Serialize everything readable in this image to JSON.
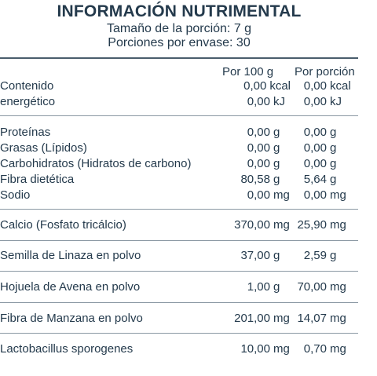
{
  "title": "INFORMACIÓN NUTRIMENTAL",
  "serving_size": "Tamaño de la porción: 7 g",
  "servings_per_container": "Porciones por envase: 30",
  "columns": {
    "per_100g": "Por 100 g",
    "per_serving": "Por porción"
  },
  "energy": {
    "label_line1": "Contenido",
    "label_line2": "energético",
    "kcal": {
      "v1": "0,00",
      "v2": "0,00",
      "unit": "kcal"
    },
    "kj": {
      "v1": "0,00",
      "v2": "0,00",
      "unit": "kJ"
    }
  },
  "nutrients": [
    {
      "label": "Proteínas",
      "v1": "0,00",
      "v2": "0,00",
      "unit": "g"
    },
    {
      "label": "Grasas (Lípidos)",
      "v1": "0,00",
      "v2": "0,00",
      "unit": "g"
    },
    {
      "label": "Carbohidratos (Hidratos de carbono)",
      "v1": "0,00",
      "v2": "0,00",
      "unit": "g"
    },
    {
      "label": "Fibra dietética",
      "v1": "80,58",
      "v2": "5,64",
      "unit": "g"
    },
    {
      "label": "Sodio",
      "v1": "0,00",
      "v2": "0,00",
      "unit": "mg"
    }
  ],
  "ingredients": [
    {
      "label": "Calcio (Fosfato tricálcio)",
      "v1": "370,00",
      "u1": "mg",
      "v2": "25,90",
      "u2": "mg"
    },
    {
      "label": "Semilla de Linaza en polvo",
      "v1": "37,00",
      "u1": "g",
      "v2": "2,59",
      "u2": "g"
    },
    {
      "label": "Hojuela de Avena en polvo",
      "v1": "1,00",
      "u1": "g",
      "v2": "70,00",
      "u2": "mg"
    },
    {
      "label": "Fibra de Manzana en polvo",
      "v1": "201,00",
      "u1": "mg",
      "v2": "14,07",
      "u2": "mg"
    },
    {
      "label": "Lactobacillus sporogenes",
      "v1": "10,00",
      "u1": "mg",
      "v2": "0,70",
      "u2": "mg"
    }
  ]
}
